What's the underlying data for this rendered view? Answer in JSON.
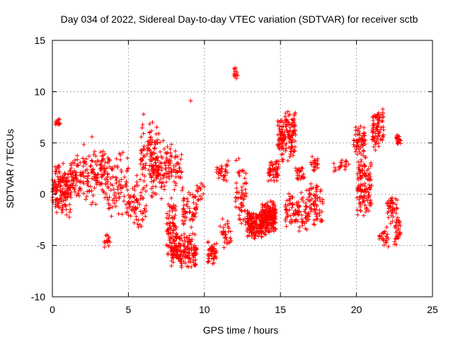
{
  "chart_data": {
    "type": "scatter",
    "title": "Day 034 of 2022, Sidereal Day-to-day VTEC variation (SDTVAR) for receiver sctb",
    "xlabel": "GPS time / hours",
    "ylabel": "SDTVAR / TECUs",
    "xlim": [
      0,
      25
    ],
    "ylim": [
      -10,
      15
    ],
    "xticks": [
      0,
      5,
      10,
      15,
      20,
      25
    ],
    "yticks": [
      -10,
      -5,
      0,
      5,
      10,
      15
    ],
    "grid": true,
    "marker": "+",
    "color": "#ff0000",
    "series": [
      {
        "name": "SDTVAR",
        "clusters": [
          {
            "x": [
              0.0,
              1.2
            ],
            "y": [
              -2.5,
              3.5
            ],
            "n": 150
          },
          {
            "x": [
              0.2,
              0.5
            ],
            "y": [
              6.5,
              7.5
            ],
            "n": 14
          },
          {
            "x": [
              1.2,
              2.0
            ],
            "y": [
              -0.5,
              4.0
            ],
            "n": 60
          },
          {
            "x": [
              2.0,
              3.5
            ],
            "y": [
              -1.5,
              5.0
            ],
            "n": 110
          },
          {
            "x": [
              3.4,
              3.8
            ],
            "y": [
              -5.5,
              -3.5
            ],
            "n": 14
          },
          {
            "x": [
              3.5,
              5.0
            ],
            "y": [
              -2.5,
              4.5
            ],
            "n": 90
          },
          {
            "x": [
              5.0,
              6.2
            ],
            "y": [
              -3.5,
              2.0
            ],
            "n": 70
          },
          {
            "x": [
              5.8,
              7.0
            ],
            "y": [
              1.0,
              7.5
            ],
            "n": 90
          },
          {
            "x": [
              6.5,
              7.5
            ],
            "y": [
              -1.0,
              5.5
            ],
            "n": 80
          },
          {
            "x": [
              7.5,
              8.2
            ],
            "y": [
              -6.5,
              0.0
            ],
            "n": 80
          },
          {
            "x": [
              7.8,
              9.5
            ],
            "y": [
              -7.5,
              -3.5
            ],
            "n": 170
          },
          {
            "x": [
              7.5,
              8.5
            ],
            "y": [
              0.0,
              5.0
            ],
            "n": 60
          },
          {
            "x": [
              8.5,
              9.5
            ],
            "y": [
              -4.0,
              1.0
            ],
            "n": 60
          },
          {
            "x": [
              9.5,
              10.0
            ],
            "y": [
              -1.0,
              1.5
            ],
            "n": 15
          },
          {
            "x": [
              10.2,
              10.8
            ],
            "y": [
              -6.8,
              -4.5
            ],
            "n": 45
          },
          {
            "x": [
              10.8,
              11.6
            ],
            "y": [
              1.0,
              3.5
            ],
            "n": 30
          },
          {
            "x": [
              11.0,
              11.8
            ],
            "y": [
              -5.5,
              -2.0
            ],
            "n": 30
          },
          {
            "x": [
              11.9,
              12.2
            ],
            "y": [
              11.0,
              12.5
            ],
            "n": 12
          },
          {
            "x": [
              12.0,
              12.8
            ],
            "y": [
              -3.5,
              4.0
            ],
            "n": 60
          },
          {
            "x": [
              12.8,
              13.8
            ],
            "y": [
              -4.5,
              -1.5
            ],
            "n": 150
          },
          {
            "x": [
              13.8,
              14.7
            ],
            "y": [
              -4.0,
              -0.5
            ],
            "n": 200
          },
          {
            "x": [
              14.2,
              14.9
            ],
            "y": [
              1.0,
              3.5
            ],
            "n": 50
          },
          {
            "x": [
              14.8,
              16.0
            ],
            "y": [
              3.0,
              8.5
            ],
            "n": 150
          },
          {
            "x": [
              15.3,
              16.8
            ],
            "y": [
              -4.0,
              0.5
            ],
            "n": 90
          },
          {
            "x": [
              16.0,
              16.6
            ],
            "y": [
              1.0,
              3.0
            ],
            "n": 25
          },
          {
            "x": [
              16.8,
              17.8
            ],
            "y": [
              -3.5,
              1.5
            ],
            "n": 70
          },
          {
            "x": [
              17.0,
              17.5
            ],
            "y": [
              2.0,
              4.0
            ],
            "n": 20
          },
          {
            "x": [
              18.5,
              19.5
            ],
            "y": [
              2.0,
              3.5
            ],
            "n": 20
          },
          {
            "x": [
              19.8,
              20.6
            ],
            "y": [
              3.5,
              7.0
            ],
            "n": 60
          },
          {
            "x": [
              20.0,
              21.0
            ],
            "y": [
              -2.5,
              4.0
            ],
            "n": 120
          },
          {
            "x": [
              21.0,
              21.8
            ],
            "y": [
              4.0,
              8.5
            ],
            "n": 80
          },
          {
            "x": [
              21.5,
              22.1
            ],
            "y": [
              -5.5,
              -3.0
            ],
            "n": 25
          },
          {
            "x": [
              22.0,
              22.7
            ],
            "y": [
              -3.5,
              0.0
            ],
            "n": 40
          },
          {
            "x": [
              22.5,
              22.9
            ],
            "y": [
              -5.0,
              -2.0
            ],
            "n": 30
          },
          {
            "x": [
              22.6,
              22.9
            ],
            "y": [
              4.5,
              6.0
            ],
            "n": 20
          }
        ],
        "outliers": [
          {
            "x": 9.1,
            "y": 9.1
          },
          {
            "x": 6.0,
            "y": 7.8
          },
          {
            "x": 2.6,
            "y": 5.6
          }
        ]
      }
    ]
  }
}
